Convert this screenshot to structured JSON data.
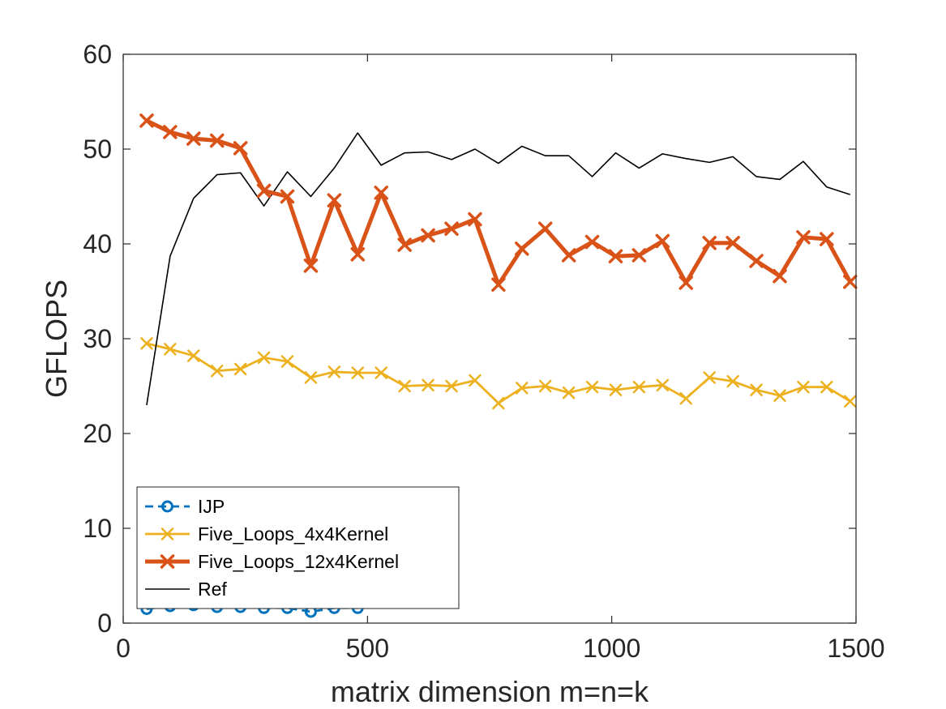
{
  "chart_data": {
    "type": "line",
    "xlabel": "matrix dimension m=n=k",
    "ylabel": "GFLOPS",
    "xlim": [
      0,
      1500
    ],
    "ylim": [
      0,
      60
    ],
    "xticks": [
      0,
      500,
      1000,
      1500
    ],
    "yticks": [
      0,
      10,
      20,
      30,
      40,
      50,
      60
    ],
    "grid": false,
    "legend_position": "bottom-left",
    "series": [
      {
        "name": "IJP",
        "color": "#0072BD",
        "style": "dashed",
        "marker": "circle",
        "x": [
          48,
          96,
          144,
          192,
          240,
          288,
          336,
          384,
          432,
          480
        ],
        "y": [
          1.5,
          1.8,
          1.9,
          1.7,
          1.7,
          1.6,
          1.6,
          1.2,
          1.6,
          1.6
        ]
      },
      {
        "name": "Five_Loops_4x4Kernel",
        "color": "#EDB120",
        "style": "solid",
        "marker": "x",
        "x": [
          48,
          96,
          144,
          192,
          240,
          288,
          336,
          384,
          432,
          480,
          528,
          576,
          624,
          672,
          720,
          768,
          816,
          864,
          912,
          960,
          1008,
          1056,
          1104,
          1152,
          1200,
          1248,
          1296,
          1344,
          1392,
          1440,
          1488
        ],
        "y": [
          29.5,
          28.9,
          28.2,
          26.6,
          26.8,
          28.0,
          27.6,
          25.9,
          26.5,
          26.4,
          26.4,
          25.0,
          25.1,
          25.0,
          25.6,
          23.2,
          24.8,
          25.0,
          24.3,
          24.9,
          24.6,
          24.9,
          25.1,
          23.7,
          25.9,
          25.5,
          24.6,
          24.0,
          24.9,
          24.9,
          23.4
        ]
      },
      {
        "name": "Five_Loops_12x4Kernel",
        "color": "#D95319",
        "style": "solid",
        "marker": "x",
        "x": [
          48,
          96,
          144,
          192,
          240,
          288,
          336,
          384,
          432,
          480,
          528,
          576,
          624,
          672,
          720,
          768,
          816,
          864,
          912,
          960,
          1008,
          1056,
          1104,
          1152,
          1200,
          1248,
          1296,
          1344,
          1392,
          1440,
          1488
        ],
        "y": [
          53.0,
          51.8,
          51.1,
          50.9,
          50.1,
          45.6,
          45.0,
          37.7,
          44.6,
          38.9,
          45.4,
          39.9,
          40.9,
          41.6,
          42.6,
          35.7,
          39.5,
          41.6,
          38.8,
          40.2,
          38.7,
          38.8,
          40.3,
          35.9,
          40.1,
          40.1,
          38.2,
          36.6,
          40.7,
          40.5,
          36.0
        ]
      },
      {
        "name": "Ref",
        "color": "#000000",
        "style": "solid",
        "marker": "none",
        "x": [
          48,
          96,
          144,
          192,
          240,
          288,
          336,
          384,
          432,
          480,
          528,
          576,
          624,
          672,
          720,
          768,
          816,
          864,
          912,
          960,
          1008,
          1056,
          1104,
          1152,
          1200,
          1248,
          1296,
          1344,
          1392,
          1440,
          1488
        ],
        "y": [
          23.0,
          38.7,
          44.8,
          47.3,
          47.5,
          44.0,
          47.6,
          45.0,
          48.0,
          51.7,
          48.3,
          49.6,
          49.7,
          48.9,
          50.0,
          48.5,
          50.3,
          49.3,
          49.3,
          47.1,
          49.6,
          48.0,
          49.5,
          49.0,
          48.6,
          49.2,
          47.1,
          46.8,
          48.7,
          46.0,
          45.2
        ]
      }
    ]
  }
}
